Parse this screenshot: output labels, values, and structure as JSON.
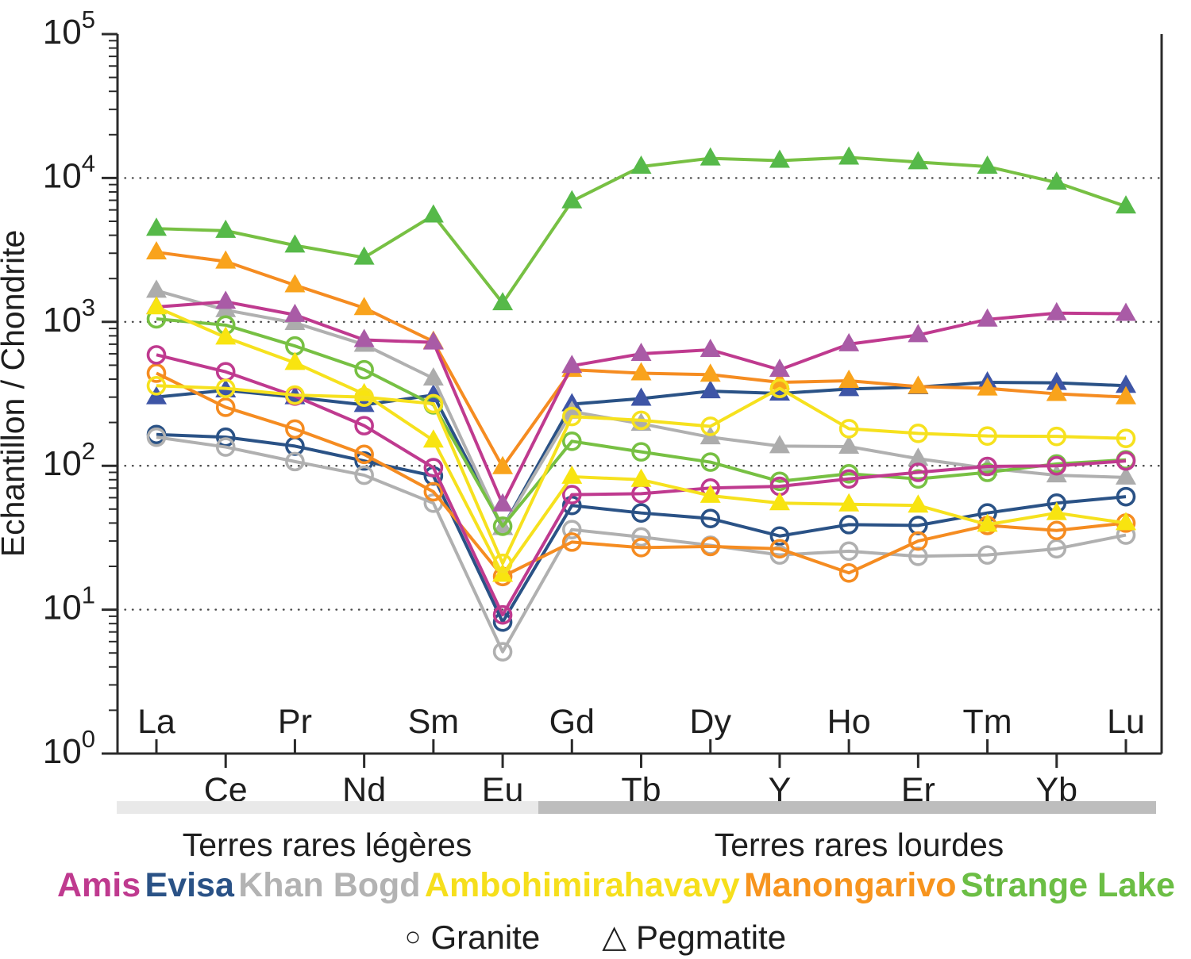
{
  "figure": {
    "ylabel": "Echantillon / Chondrite",
    "y_tick_exponents": [
      0,
      1,
      2,
      3,
      4,
      5
    ],
    "band_light_label": "Terres rares légères",
    "band_heavy_label": "Terres rares lourdes",
    "band_light_color": "#E9E9E9",
    "band_heavy_color": "#BDBDBD",
    "axis_color": "#2b2b2b",
    "grid_color": "#4a4a4a"
  },
  "legend": {
    "localities": [
      {
        "id": "amis",
        "label": "Amis",
        "color": "#BF3A8F"
      },
      {
        "id": "evisa",
        "label": "Evisa",
        "color": "#2A5286"
      },
      {
        "id": "khan-bogd",
        "label": "Khan Bogd",
        "color": "#B3B3B3"
      },
      {
        "id": "ambohimirahavavy",
        "label": "Ambohimirahavavy",
        "color": "#F6DF1C"
      },
      {
        "id": "manongarivo",
        "label": "Manongarivo",
        "color": "#F7941E"
      },
      {
        "id": "strange-lake",
        "label": "Strange Lake",
        "color": "#6CBE45"
      }
    ],
    "rock_types": [
      {
        "id": "granite",
        "label": "Granite",
        "symbol": "○",
        "marker": "circle"
      },
      {
        "id": "pegmatite",
        "label": "Pegmatite",
        "symbol": "△",
        "marker": "triangle"
      }
    ]
  },
  "chart_data": {
    "type": "line",
    "title": "",
    "xlabel": "",
    "ylabel": "Echantillon / Chondrite",
    "y_scale": "log",
    "ylim": [
      1,
      100000
    ],
    "gridline_values": [
      10,
      100,
      1000,
      10000
    ],
    "x_categories": [
      "La",
      "Ce",
      "Pr",
      "Nd",
      "Sm",
      "Eu",
      "Gd",
      "Tb",
      "Dy",
      "Y",
      "Ho",
      "Er",
      "Tm",
      "Yb",
      "Lu"
    ],
    "groups": [
      {
        "label": "Terres rares légères",
        "from": "La",
        "to": "Eu"
      },
      {
        "label": "Terres rares lourdes",
        "from": "Gd",
        "to": "Lu"
      }
    ],
    "legend_position": "bottom",
    "grid": "horizontal-dotted",
    "series": [
      {
        "id": "evisa-pegmatite",
        "locality": "Evisa",
        "rock_type": "Pegmatite",
        "marker": "triangle",
        "color": "#2A5286",
        "marker_fill": "#3E55A6",
        "values": [
          300,
          335,
          300,
          265,
          310,
          37,
          268,
          293,
          330,
          318,
          342,
          352,
          380,
          377,
          360
        ]
      },
      {
        "id": "evisa-granite",
        "locality": "Evisa",
        "rock_type": "Granite",
        "marker": "circle",
        "color": "#2A5286",
        "marker_fill": "none",
        "values": [
          165,
          158,
          137,
          108,
          85,
          8.2,
          53,
          47,
          43,
          32.5,
          39,
          38.5,
          47,
          55,
          61
        ]
      },
      {
        "id": "khan-bogd-pegmatite",
        "locality": "Khan Bogd",
        "rock_type": "Pegmatite",
        "marker": "triangle",
        "color": "#B0B0B0",
        "marker_fill": "#ACACAC",
        "values": [
          1650,
          1210,
          985,
          695,
          405,
          37,
          238,
          196,
          158,
          137,
          136,
          112,
          96,
          86,
          83
        ]
      },
      {
        "id": "khan-bogd-granite",
        "locality": "Khan Bogd",
        "rock_type": "Granite",
        "marker": "circle",
        "color": "#B0B0B0",
        "marker_fill": "none",
        "values": [
          158,
          135,
          107,
          86,
          55,
          5.1,
          36,
          32,
          28,
          24,
          25.5,
          23.5,
          24,
          26.5,
          33
        ]
      },
      {
        "id": "manongarivo-pegmatite",
        "locality": "Manongarivo",
        "rock_type": "Pegmatite",
        "marker": "triangle",
        "color": "#F58C21",
        "marker_fill": "#F9A31C",
        "values": [
          3050,
          2630,
          1800,
          1250,
          730,
          98,
          465,
          440,
          430,
          380,
          390,
          355,
          345,
          316,
          300
        ]
      },
      {
        "id": "manongarivo-granite",
        "locality": "Manongarivo",
        "rock_type": "Granite",
        "marker": "circle",
        "color": "#F58C21",
        "marker_fill": "none",
        "values": [
          440,
          255,
          180,
          120,
          66,
          17,
          29.5,
          27,
          27.5,
          26.5,
          18,
          30,
          38.5,
          35.5,
          40
        ]
      },
      {
        "id": "strange-lake-pegmatite",
        "locality": "Strange Lake",
        "rock_type": "Pegmatite",
        "marker": "triangle",
        "color": "#77C043",
        "marker_fill": "#56B949",
        "values": [
          4450,
          4300,
          3400,
          2800,
          5500,
          1350,
          6900,
          12000,
          13700,
          13200,
          13900,
          12900,
          12000,
          9300,
          6350
        ]
      },
      {
        "id": "strange-lake-granite",
        "locality": "Strange Lake",
        "rock_type": "Granite",
        "marker": "circle",
        "color": "#77C043",
        "marker_fill": "none",
        "values": [
          1050,
          950,
          680,
          465,
          265,
          38,
          148,
          125,
          106,
          78,
          88,
          81,
          90,
          103,
          110
        ]
      },
      {
        "id": "amis-pegmatite",
        "locality": "Amis",
        "rock_type": "Pegmatite",
        "marker": "triangle",
        "color": "#BF3A8F",
        "marker_fill": "#A95BA6",
        "values": [
          1270,
          1380,
          1120,
          750,
          720,
          54,
          495,
          600,
          640,
          465,
          700,
          810,
          1040,
          1150,
          1140
        ]
      },
      {
        "id": "amis-granite",
        "locality": "Amis",
        "rock_type": "Granite",
        "marker": "circle",
        "color": "#BF3A8F",
        "marker_fill": "none",
        "values": [
          590,
          450,
          305,
          190,
          97,
          9.2,
          63,
          64,
          70,
          72,
          81,
          90,
          99,
          100,
          108
        ]
      },
      {
        "id": "ambohimirahavavy-pegmatite",
        "locality": "Ambohimirahavavy",
        "rock_type": "Pegmatite",
        "marker": "triangle",
        "color": "#F6E11E",
        "marker_fill": "#F8E410",
        "values": [
          1265,
          780,
          520,
          315,
          150,
          17.5,
          84,
          80,
          62,
          55,
          54,
          53,
          39,
          47,
          40
        ]
      },
      {
        "id": "ambohimirahavavy-granite",
        "locality": "Ambohimirahavavy",
        "rock_type": "Granite",
        "marker": "circle",
        "color": "#F6E11E",
        "marker_fill": "none",
        "values": [
          360,
          345,
          310,
          300,
          270,
          21,
          220,
          207,
          188,
          345,
          181,
          168,
          161,
          160,
          155
        ]
      }
    ]
  }
}
